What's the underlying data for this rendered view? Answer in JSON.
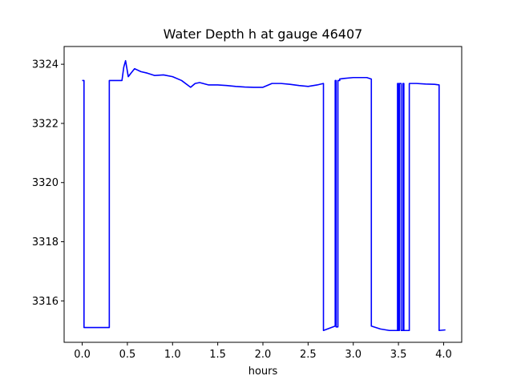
{
  "chart_data": {
    "type": "line",
    "title": "Water Depth h at gauge 46407",
    "xlabel": "hours",
    "ylabel": "",
    "xlim": [
      -0.2,
      4.2
    ],
    "ylim": [
      3314.6,
      3324.6
    ],
    "xticks": [
      0.0,
      0.5,
      1.0,
      1.5,
      2.0,
      2.5,
      3.0,
      3.5,
      4.0
    ],
    "xtick_labels": [
      "0.0",
      "0.5",
      "1.0",
      "1.5",
      "2.0",
      "2.5",
      "3.0",
      "3.5",
      "4.0"
    ],
    "yticks": [
      3316,
      3318,
      3320,
      3322,
      3324
    ],
    "ytick_labels": [
      "3316",
      "3318",
      "3320",
      "3322",
      "3324"
    ],
    "grid": false,
    "legend": "none",
    "series": [
      {
        "color": "#0000ff",
        "x": [
          0.0,
          0.02,
          0.02,
          0.3,
          0.3,
          0.44,
          0.46,
          0.48,
          0.51,
          0.54,
          0.58,
          0.65,
          0.72,
          0.8,
          0.9,
          1.0,
          1.1,
          1.2,
          1.25,
          1.3,
          1.4,
          1.5,
          1.6,
          1.7,
          1.8,
          1.9,
          2.0,
          2.1,
          2.2,
          2.3,
          2.4,
          2.5,
          2.6,
          2.67,
          2.67,
          2.8,
          2.8,
          2.81,
          2.81,
          2.83,
          2.83,
          2.85,
          2.85,
          2.9,
          3.0,
          3.1,
          3.15,
          3.2,
          3.2,
          3.3,
          3.4,
          3.49,
          3.49,
          3.5,
          3.5,
          3.51,
          3.51,
          3.53,
          3.53,
          3.55,
          3.55,
          3.56,
          3.56,
          3.62,
          3.62,
          3.63,
          3.63,
          3.7,
          3.8,
          3.9,
          3.95,
          3.95,
          4.02
        ],
        "y": [
          3323.45,
          3323.45,
          3315.1,
          3315.1,
          3323.45,
          3323.45,
          3323.9,
          3324.12,
          3323.58,
          3323.7,
          3323.85,
          3323.75,
          3323.7,
          3323.62,
          3323.64,
          3323.58,
          3323.45,
          3323.22,
          3323.35,
          3323.38,
          3323.3,
          3323.3,
          3323.28,
          3323.25,
          3323.23,
          3323.22,
          3323.22,
          3323.35,
          3323.35,
          3323.32,
          3323.28,
          3323.25,
          3323.3,
          3323.35,
          3315.0,
          3315.15,
          3323.45,
          3323.45,
          3315.12,
          3315.12,
          3323.45,
          3323.45,
          3323.5,
          3323.52,
          3323.55,
          3323.55,
          3323.55,
          3323.5,
          3315.15,
          3315.05,
          3315.0,
          3315.0,
          3323.35,
          3323.35,
          3315.0,
          3315.0,
          3323.35,
          3323.35,
          3315.0,
          3315.0,
          3323.35,
          3323.35,
          3315.0,
          3315.0,
          3323.35,
          3323.35,
          3323.35,
          3323.35,
          3323.33,
          3323.32,
          3323.3,
          3315.0,
          3315.02
        ]
      }
    ]
  }
}
